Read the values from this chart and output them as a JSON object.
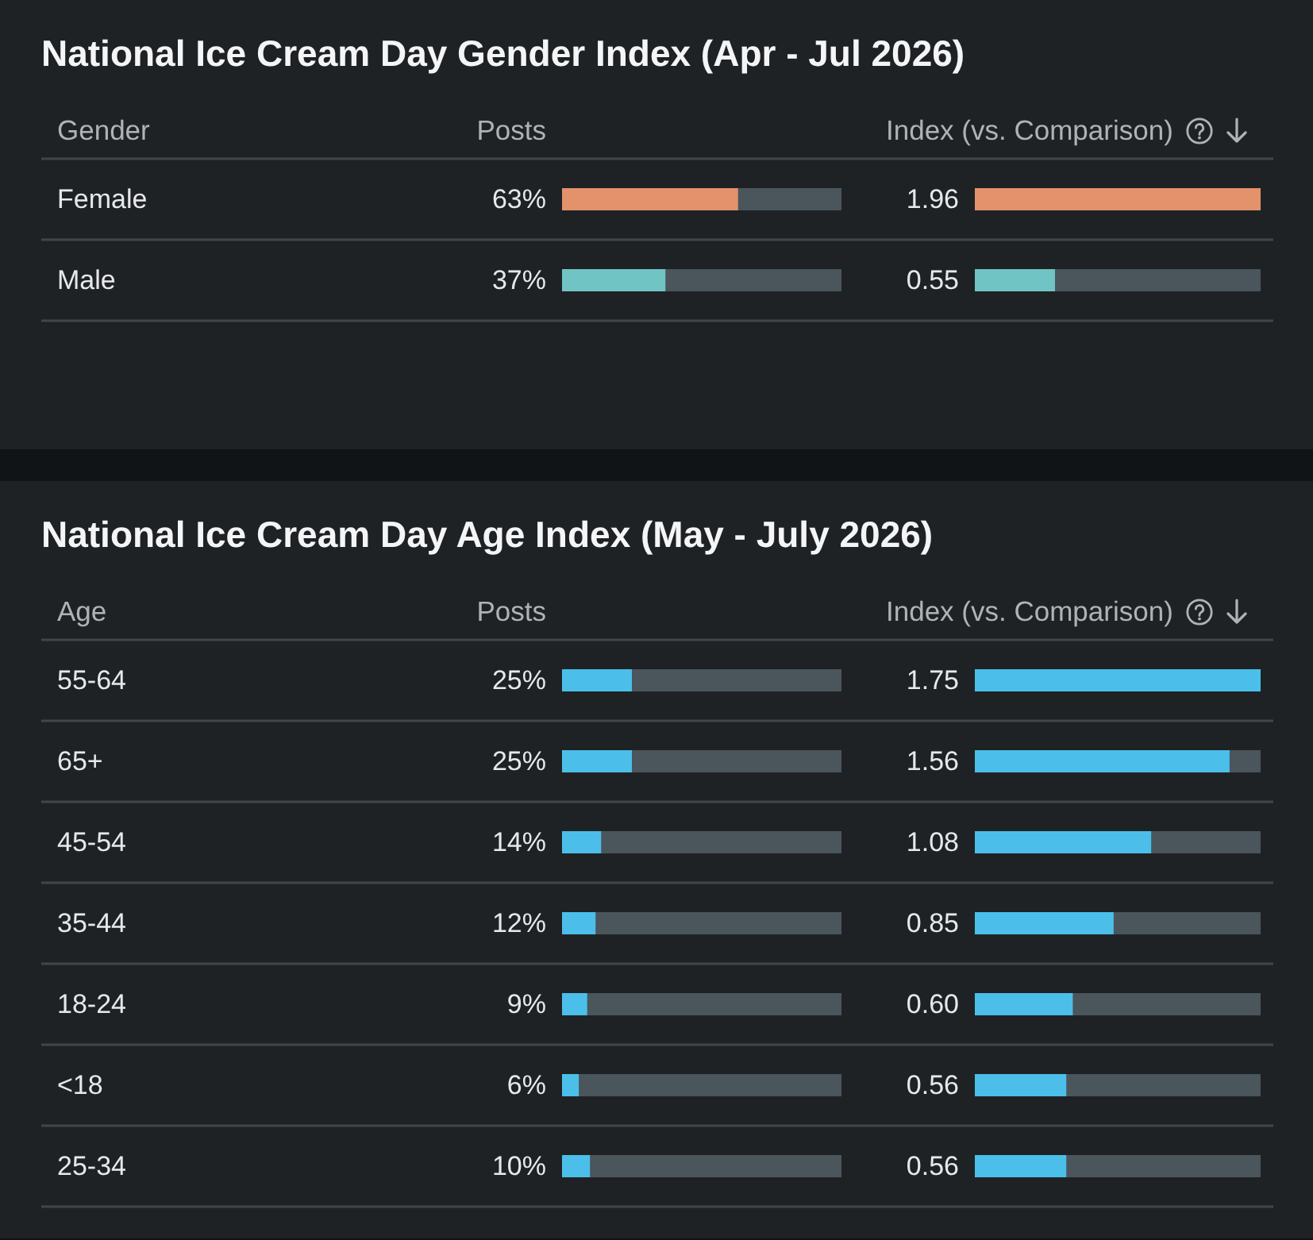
{
  "chart_data": [
    {
      "type": "bar",
      "orientation": "horizontal",
      "title": "National Ice Cream Day Gender Index (Apr - Jul 2026)",
      "ylabel": "Gender",
      "xlabel": "Posts",
      "categories": [
        "Female",
        "Male"
      ],
      "colors": [
        "#e3926b",
        "#70c4c4"
      ],
      "values": [
        63,
        37
      ],
      "value_labels": [
        "63%",
        "37%"
      ],
      "xlim": [
        0,
        100
      ],
      "tick_labels": "y",
      "grid": "y"
    },
    {
      "type": "bar",
      "orientation": "horizontal",
      "xlabel": "Index (vs. Comparison)",
      "categories": [
        null,
        null
      ],
      "colors": [
        "#e3926b",
        "#70c4c4"
      ],
      "values": [
        1.96,
        0.55
      ],
      "value_labels": [
        "1.96",
        "0.55"
      ],
      "xlim": [
        0,
        1.96
      ],
      "tick_labels": false,
      "grid": "y"
    },
    {
      "type": "bar",
      "orientation": "horizontal",
      "title": "National Ice Cream Day Age Index (May - July 2026)",
      "ylabel": "Age",
      "xlabel": "Posts",
      "categories": [
        "55-64",
        "65+",
        "45-54",
        "35-44",
        "18-24",
        "<18",
        "25-34"
      ],
      "color": "#4bbfe9",
      "values": [
        25,
        25,
        14,
        12,
        9,
        6,
        10
      ],
      "value_labels": [
        "25%",
        "25%",
        "14%",
        "12%",
        "9%",
        "6%",
        "10%"
      ],
      "xlim": [
        0,
        100
      ],
      "tick_labels": "y",
      "grid": "y"
    },
    {
      "type": "bar",
      "orientation": "horizontal",
      "xlabel": "Index (vs. Comparison)",
      "categories": [
        null,
        null,
        null,
        null,
        null,
        null,
        null
      ],
      "color": "#4bbfe9",
      "values": [
        1.75,
        1.56,
        1.08,
        0.85,
        0.6,
        0.56,
        0.56
      ],
      "value_labels": [
        "1.75",
        "1.56",
        "1.08",
        "0.85",
        "0.60",
        "0.56",
        "0.56"
      ],
      "xlim": [
        0,
        1.75
      ],
      "tick_labels": false,
      "grid": "y"
    }
  ]
}
